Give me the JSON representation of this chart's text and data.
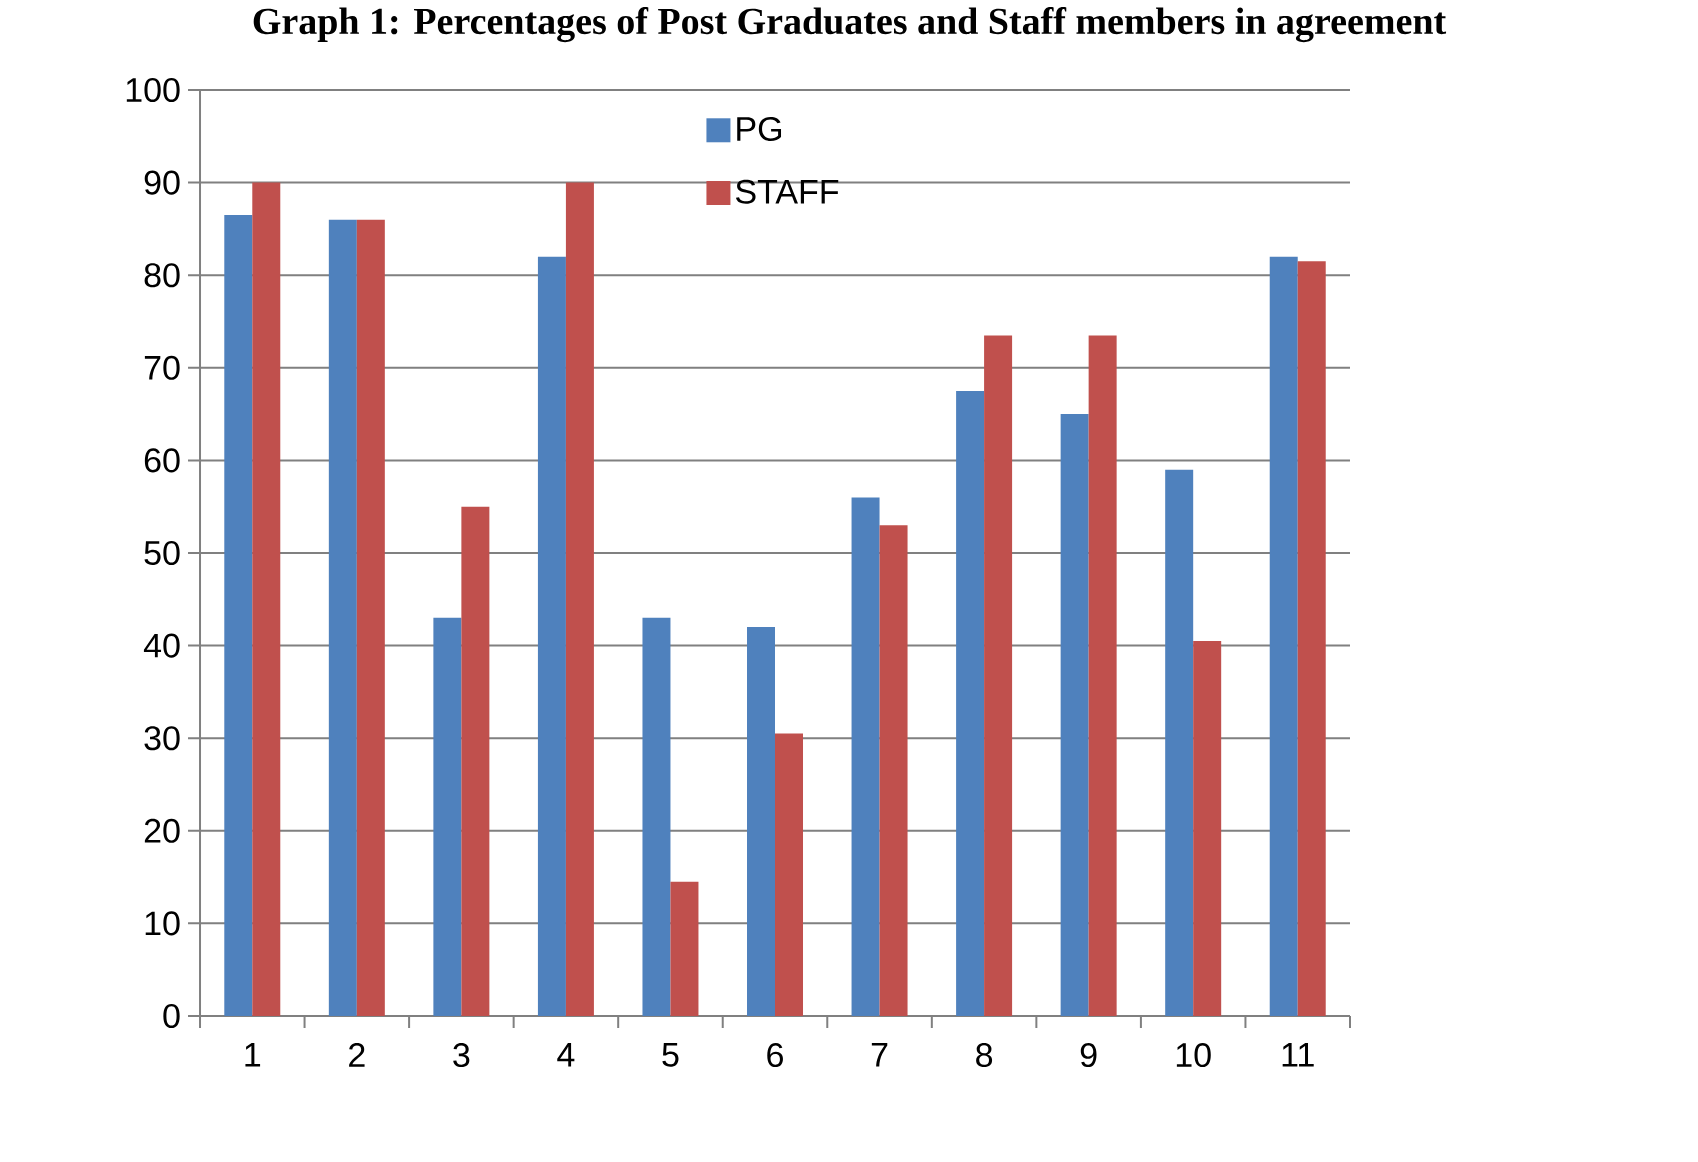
{
  "chart_data": {
    "type": "bar",
    "title": "Graph 1: Percentages of Post Graduates and Staff members in agreement",
    "categories": [
      "1",
      "2",
      "3",
      "4",
      "5",
      "6",
      "7",
      "8",
      "9",
      "10",
      "11"
    ],
    "series": [
      {
        "name": "PG",
        "color": "#4f81bd",
        "values": [
          86.5,
          86,
          43,
          82,
          43,
          42,
          56,
          67.5,
          65,
          59,
          82
        ]
      },
      {
        "name": "STAFF",
        "color": "#c0504d",
        "values": [
          90,
          86,
          55,
          90,
          14.5,
          30.5,
          53,
          73.5,
          73.5,
          40.5,
          81.5
        ]
      }
    ],
    "ylim": [
      0,
      100
    ],
    "yticks": [
      0,
      10,
      20,
      30,
      40,
      50,
      60,
      70,
      80,
      90,
      100
    ],
    "grid": "y",
    "legend": "top"
  }
}
